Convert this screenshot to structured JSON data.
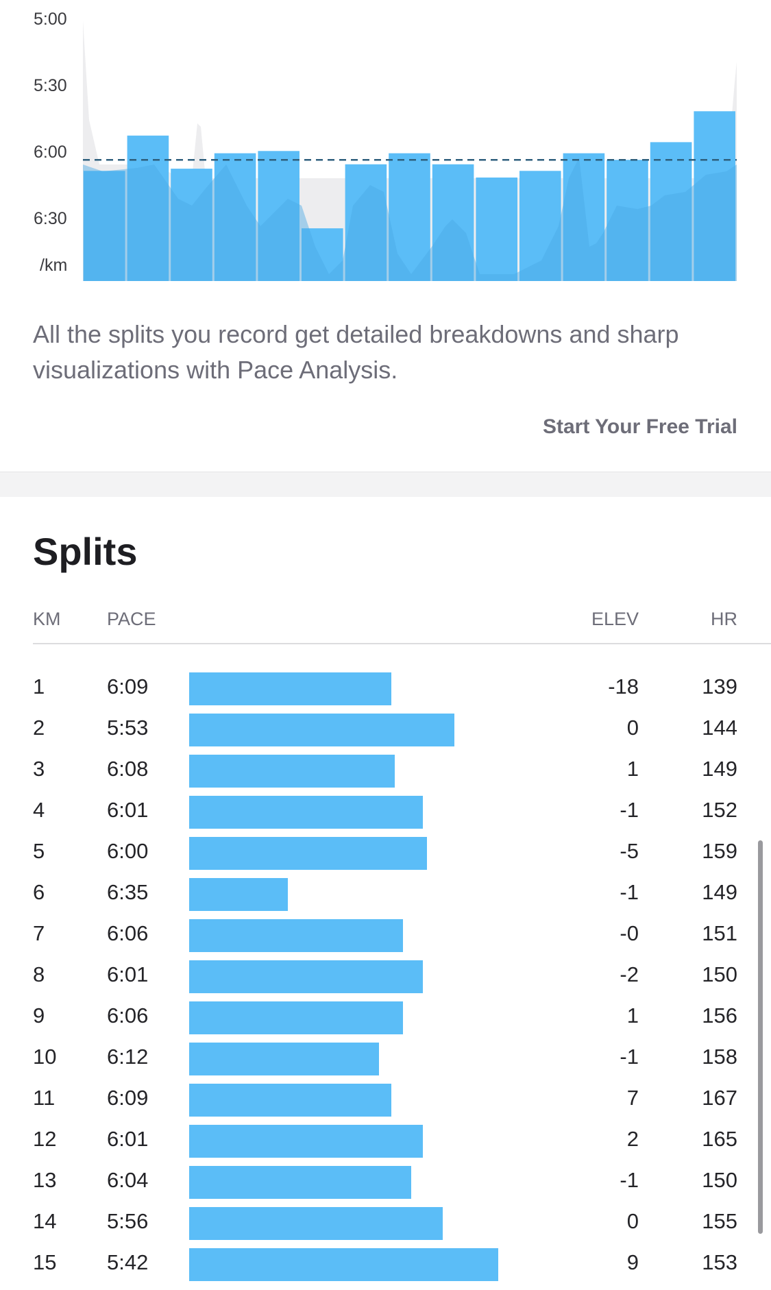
{
  "chart_data": {
    "type": "bar",
    "title": "",
    "xlabel": "",
    "ylabel": "/km",
    "y_tick_labels": [
      "5:00",
      "5:30",
      "6:00",
      "6:30",
      "/km"
    ],
    "y_ticks_seconds": [
      300,
      330,
      360,
      390
    ],
    "y_range_seconds": [
      300,
      420
    ],
    "y_reversed": true,
    "categories": [
      "1",
      "2",
      "3",
      "4",
      "5",
      "6",
      "7",
      "8",
      "9",
      "10",
      "11",
      "12",
      "13",
      "14",
      "15"
    ],
    "values_seconds": [
      369,
      353,
      368,
      361,
      360,
      395,
      366,
      361,
      366,
      372,
      369,
      361,
      364,
      356,
      342
    ],
    "average_pace_seconds": 364,
    "bar_color": "#5bbdf7",
    "average_line_color": "#2e5f7d",
    "background_area_color": "#ededef",
    "overlay_color": "#4aa8e4",
    "grid": false
  },
  "description": "All the splits you record get detailed breakdowns and sharp visualizations with Pace Analysis.",
  "cta_label": "Start Your Free Trial",
  "splits": {
    "title": "Splits",
    "headers": {
      "km": "KM",
      "pace": "PACE",
      "elev": "ELEV",
      "hr": "HR"
    },
    "bar_color": "#5bbdf7",
    "rows": [
      {
        "km": "1",
        "pace": "6:09",
        "elev": "-18",
        "hr": "139",
        "pace_seconds": 369
      },
      {
        "km": "2",
        "pace": "5:53",
        "elev": "0",
        "hr": "144",
        "pace_seconds": 353
      },
      {
        "km": "3",
        "pace": "6:08",
        "elev": "1",
        "hr": "149",
        "pace_seconds": 368
      },
      {
        "km": "4",
        "pace": "6:01",
        "elev": "-1",
        "hr": "152",
        "pace_seconds": 361
      },
      {
        "km": "5",
        "pace": "6:00",
        "elev": "-5",
        "hr": "159",
        "pace_seconds": 360
      },
      {
        "km": "6",
        "pace": "6:35",
        "elev": "-1",
        "hr": "149",
        "pace_seconds": 395
      },
      {
        "km": "7",
        "pace": "6:06",
        "elev": "-0",
        "hr": "151",
        "pace_seconds": 366
      },
      {
        "km": "8",
        "pace": "6:01",
        "elev": "-2",
        "hr": "150",
        "pace_seconds": 361
      },
      {
        "km": "9",
        "pace": "6:06",
        "elev": "1",
        "hr": "156",
        "pace_seconds": 366
      },
      {
        "km": "10",
        "pace": "6:12",
        "elev": "-1",
        "hr": "158",
        "pace_seconds": 372
      },
      {
        "km": "11",
        "pace": "6:09",
        "elev": "7",
        "hr": "167",
        "pace_seconds": 369
      },
      {
        "km": "12",
        "pace": "6:01",
        "elev": "2",
        "hr": "165",
        "pace_seconds": 361
      },
      {
        "km": "13",
        "pace": "6:04",
        "elev": "-1",
        "hr": "150",
        "pace_seconds": 364
      },
      {
        "km": "14",
        "pace": "5:56",
        "elev": "0",
        "hr": "155",
        "pace_seconds": 356
      },
      {
        "km": "15",
        "pace": "5:42",
        "elev": "9",
        "hr": "153",
        "pace_seconds": 342
      }
    ]
  }
}
